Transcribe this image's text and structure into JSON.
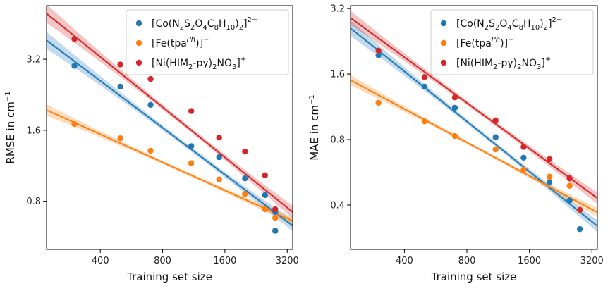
{
  "chart_data": [
    {
      "type": "scatter",
      "title": "",
      "xlabel": "Training set size",
      "ylabel_main": "RMSE in cm",
      "ylabel_sup": "−1",
      "xscale": "log2",
      "yscale": "log2",
      "xlim": [
        220,
        3400
      ],
      "ylim": [
        0.5,
        5.4
      ],
      "xticks": [
        400,
        800,
        1600,
        3200
      ],
      "xtick_labels": [
        "400",
        "800",
        "1600",
        "3200"
      ],
      "yticks": [
        0.8,
        1.6,
        3.2
      ],
      "ytick_labels": [
        "0.8",
        "1.6",
        "3.2"
      ],
      "legend_position": "top-right",
      "series": [
        {
          "name": "[Co(N2S2O4C8H10)2]2−",
          "legend": {
            "base": "[Co(N",
            "parts": [
              [
                "2",
                "sub"
              ],
              [
                "S",
                ""
              ],
              [
                "2",
                "sub"
              ],
              [
                "O",
                ""
              ],
              [
                "4",
                "sub"
              ],
              [
                "C",
                ""
              ],
              [
                "8",
                "sub"
              ],
              [
                "H",
                ""
              ],
              [
                "10",
                "sub"
              ],
              [
                ")",
                ""
              ],
              [
                "2",
                "sub"
              ],
              [
                "]",
                ""
              ],
              [
                "2−",
                "sup"
              ]
            ]
          },
          "color": "#1f77b4",
          "x": [
            300,
            500,
            700,
            1100,
            1500,
            2000,
            2500,
            2800,
            2800
          ],
          "y": [
            3.0,
            2.45,
            2.05,
            1.37,
            1.23,
            1.0,
            0.85,
            0.72,
            0.6
          ],
          "fit_x": [
            220,
            3400
          ],
          "fit_y": [
            3.85,
            0.63
          ],
          "band_halfwidth": [
            0.12,
            0.035,
            0.08
          ]
        },
        {
          "name": "[Fe(tpaPh)]−",
          "legend": {
            "base": "[Fe(tpa",
            "parts": [
              [
                "Ph",
                "supi"
              ],
              [
                ")]",
                ""
              ],
              [
                "−",
                "sup"
              ]
            ]
          },
          "color": "#ff7f0e",
          "x": [
            300,
            500,
            700,
            1100,
            1500,
            2000,
            2500,
            2800
          ],
          "y": [
            1.7,
            1.48,
            1.31,
            1.16,
            0.99,
            0.86,
            0.74,
            0.68
          ],
          "fit_x": [
            220,
            3400
          ],
          "fit_y": [
            1.95,
            0.66
          ],
          "band_halfwidth": [
            0.08,
            0.025,
            0.06
          ]
        },
        {
          "name": "[Ni(HIM2-py)2NO3]+",
          "legend": {
            "base": "[Ni(HIM",
            "parts": [
              [
                "2",
                "sub"
              ],
              [
                "-py)",
                ""
              ],
              [
                "2",
                "sub"
              ],
              [
                "NO",
                ""
              ],
              [
                "3",
                "sub"
              ],
              [
                "]",
                ""
              ],
              [
                "+",
                "sup"
              ]
            ]
          },
          "color": "#d62728",
          "x": [
            300,
            500,
            700,
            1100,
            1500,
            2000,
            2500,
            2800
          ],
          "y": [
            3.9,
            3.04,
            2.64,
            1.93,
            1.49,
            1.3,
            1.03,
            0.74
          ],
          "fit_x": [
            220,
            3400
          ],
          "fit_y": [
            5.0,
            0.72
          ],
          "band_halfwidth": [
            0.13,
            0.035,
            0.09
          ]
        }
      ]
    },
    {
      "type": "scatter",
      "title": "",
      "xlabel": "Training set size",
      "ylabel_main": "MAE in cm",
      "ylabel_sup": "−1",
      "xscale": "log2",
      "yscale": "log2",
      "xlim": [
        220,
        3400
      ],
      "ylim": [
        0.25,
        3.3
      ],
      "xticks": [
        400,
        800,
        1600,
        3200
      ],
      "xtick_labels": [
        "400",
        "800",
        "1600",
        "3200"
      ],
      "yticks": [
        0.4,
        0.8,
        1.6,
        3.2
      ],
      "ytick_labels": [
        "0.4",
        "0.8",
        "1.6",
        "3.2"
      ],
      "legend_position": "top-right",
      "series": [
        {
          "name": "[Co(N2S2O4C8H10)2]2−",
          "legend": {
            "base": "[Co(N",
            "parts": [
              [
                "2",
                "sub"
              ],
              [
                "S",
                ""
              ],
              [
                "2",
                "sub"
              ],
              [
                "O",
                ""
              ],
              [
                "4",
                "sub"
              ],
              [
                "C",
                ""
              ],
              [
                "8",
                "sub"
              ],
              [
                "H",
                ""
              ],
              [
                "10",
                "sub"
              ],
              [
                ")",
                ""
              ],
              [
                "2",
                "sub"
              ],
              [
                "]",
                ""
              ],
              [
                "2−",
                "sup"
              ]
            ]
          },
          "color": "#1f77b4",
          "x": [
            300,
            500,
            700,
            1100,
            1500,
            2000,
            2500,
            2800
          ],
          "y": [
            1.95,
            1.4,
            1.12,
            0.82,
            0.66,
            0.51,
            0.42,
            0.31
          ],
          "fit_x": [
            220,
            3400
          ],
          "fit_y": [
            2.6,
            0.32
          ],
          "band_halfwidth": [
            0.12,
            0.035,
            0.09
          ]
        },
        {
          "name": "[Fe(tpaPh)]−",
          "legend": {
            "base": "[Fe(tpa",
            "parts": [
              [
                "Ph",
                "supi"
              ],
              [
                ")]",
                ""
              ],
              [
                "−",
                "sup"
              ]
            ]
          },
          "color": "#ff7f0e",
          "x": [
            300,
            500,
            700,
            1100,
            1500,
            2000,
            2500,
            2800
          ],
          "y": [
            1.18,
            0.97,
            0.83,
            0.72,
            0.58,
            0.54,
            0.49,
            0.38
          ],
          "fit_x": [
            220,
            3400
          ],
          "fit_y": [
            1.5,
            0.37
          ],
          "band_halfwidth": [
            0.08,
            0.025,
            0.07
          ]
        },
        {
          "name": "[Ni(HIM2-py)2NO3]+",
          "legend": {
            "base": "[Ni(HIM",
            "parts": [
              [
                "2",
                "sub"
              ],
              [
                "-py)",
                ""
              ],
              [
                "2",
                "sub"
              ],
              [
                "NO",
                ""
              ],
              [
                "3",
                "sub"
              ],
              [
                "]",
                ""
              ],
              [
                "+",
                "sup"
              ]
            ]
          },
          "color": "#d62728",
          "x": [
            300,
            500,
            700,
            1100,
            1500,
            2000,
            2500,
            2800
          ],
          "y": [
            2.05,
            1.55,
            1.25,
            0.98,
            0.74,
            0.65,
            0.53,
            0.38
          ],
          "fit_x": [
            220,
            3400
          ],
          "fit_y": [
            2.9,
            0.43
          ],
          "band_halfwidth": [
            0.11,
            0.035,
            0.09
          ]
        }
      ]
    }
  ]
}
